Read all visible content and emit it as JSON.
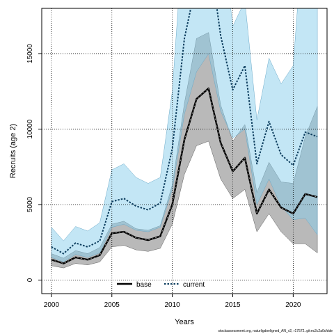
{
  "chart_data": {
    "type": "line",
    "xlabel": "Years",
    "ylabel": "Recruits (age 2)",
    "xlim": [
      1999.2,
      2022.8
    ],
    "ylim": [
      -900,
      18000
    ],
    "x_ticks": [
      2000,
      2005,
      2010,
      2015,
      2020
    ],
    "y_ticks": [
      0,
      5000,
      10000,
      15000
    ],
    "grid": true,
    "legend_position": "bottom-center",
    "x": [
      2000,
      2001,
      2002,
      2003,
      2004,
      2005,
      2006,
      2007,
      2008,
      2009,
      2010,
      2011,
      2012,
      2013,
      2014,
      2015,
      2016,
      2017,
      2018,
      2019,
      2020,
      2021,
      2022
    ],
    "series": [
      {
        "name": "base",
        "color": "#000000",
        "band_color": "#808080",
        "values": [
          1350,
          1100,
          1500,
          1350,
          1650,
          3100,
          3200,
          2800,
          2650,
          2900,
          5000,
          9300,
          12000,
          12700,
          9100,
          7200,
          8100,
          4400,
          6000,
          4800,
          4400,
          5700,
          5500
        ],
        "lower": [
          950,
          800,
          1100,
          1000,
          1200,
          2200,
          2300,
          2000,
          1900,
          2100,
          3700,
          7000,
          8900,
          9200,
          6700,
          5400,
          6000,
          3200,
          4400,
          3200,
          2400,
          2400,
          1800
        ],
        "upper": [
          1750,
          1450,
          1950,
          1750,
          2150,
          3700,
          3900,
          3400,
          3300,
          3600,
          6300,
          11700,
          16000,
          16400,
          11600,
          9200,
          10300,
          5800,
          7800,
          6500,
          6400,
          9500,
          11500
        ]
      },
      {
        "name": "current",
        "color": "#0B3C5D",
        "band_color": "#87CEEB",
        "values": [
          2200,
          1750,
          2450,
          2200,
          2600,
          5200,
          5400,
          4900,
          4650,
          5100,
          8700,
          16000,
          19800,
          22000,
          16200,
          12600,
          14200,
          7700,
          10500,
          8300,
          7600,
          9800,
          9500
        ],
        "lower": [
          1500,
          1200,
          1700,
          1500,
          1800,
          3500,
          3700,
          3300,
          3200,
          3500,
          6000,
          11000,
          13800,
          15000,
          11200,
          9400,
          10000,
          5000,
          6700,
          4900,
          4000,
          4100,
          3000
        ],
        "upper": [
          3500,
          2600,
          3550,
          3250,
          3800,
          7300,
          7700,
          6800,
          6400,
          6800,
          12500,
          24000,
          30000,
          32000,
          24000,
          16800,
          18500,
          10600,
          14700,
          13000,
          14200,
          25000,
          30000
        ]
      }
    ]
  },
  "footer": "stockassessment.org, naturligdoeligned_AN_v2, r17572..git:ec2c2a0cfdde"
}
